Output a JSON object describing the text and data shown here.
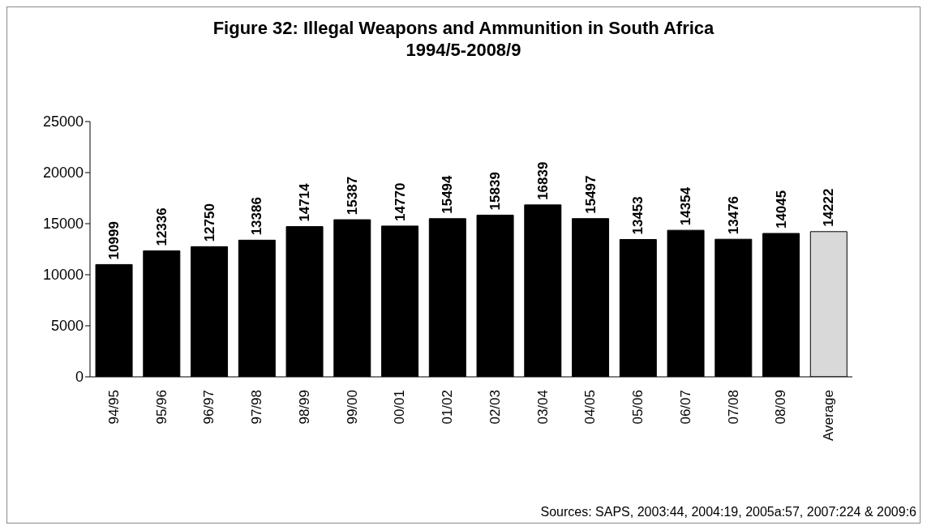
{
  "chart_data": {
    "type": "bar",
    "title": "Figure 32: Illegal Weapons and Ammunition in South Africa\n1994/5-2008/9",
    "categories": [
      "94/95",
      "95/96",
      "96/97",
      "97/98",
      "98/99",
      "99/00",
      "00/01",
      "01/02",
      "02/03",
      "03/04",
      "04/05",
      "05/06",
      "06/07",
      "07/08",
      "08/09",
      "Average"
    ],
    "values": [
      10999,
      12336,
      12750,
      13386,
      14714,
      15387,
      14770,
      15494,
      15839,
      16839,
      15497,
      13453,
      14354,
      13476,
      14045,
      14222
    ],
    "colors": [
      "#000000",
      "#000000",
      "#000000",
      "#000000",
      "#000000",
      "#000000",
      "#000000",
      "#000000",
      "#000000",
      "#000000",
      "#000000",
      "#000000",
      "#000000",
      "#000000",
      "#000000",
      "#d9d9d9"
    ],
    "ylim": [
      0,
      25000
    ],
    "yticks": [
      0,
      5000,
      10000,
      15000,
      20000,
      25000
    ],
    "data_labels": true,
    "annotations": [
      "Sources: SAPS, 2003:44, 2004:19, 2005a:57, 2007:224 & 2009:6"
    ]
  }
}
